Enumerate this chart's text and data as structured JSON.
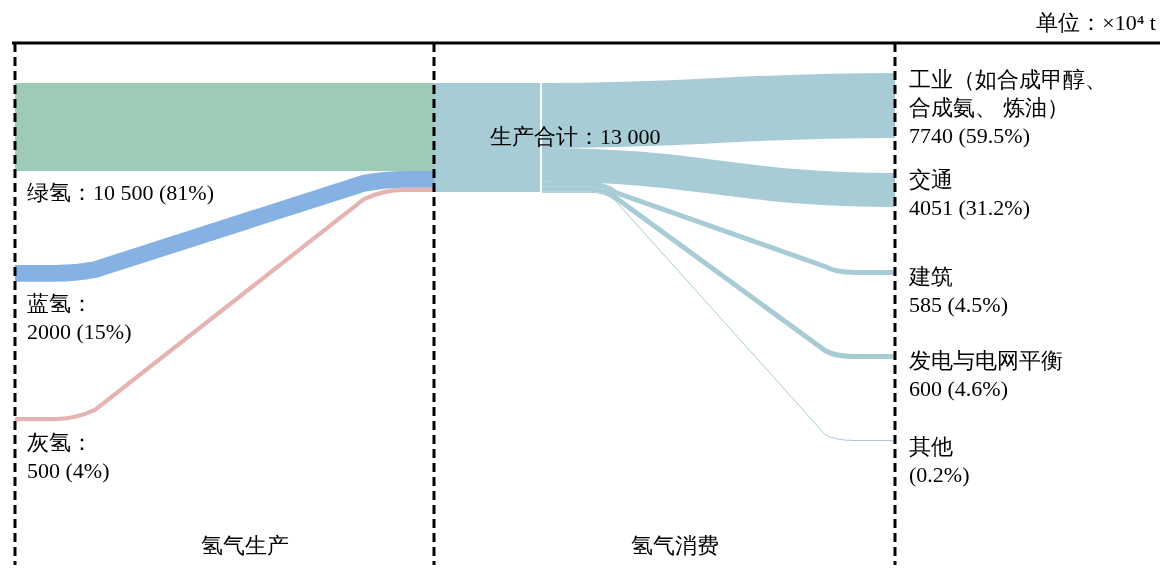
{
  "chart_data": {
    "type": "other",
    "categories": [
      "绿氢",
      "蓝氢",
      "灰氢",
      "生产合计",
      "工业（如合成甲醇、合成氨、 炼油）",
      "交通",
      "建筑",
      "发电与电网平衡",
      "其他"
    ],
    "values": [
      10500,
      2000,
      500,
      13000,
      7740,
      4051,
      585,
      600,
      null
    ],
    "value_labels": [
      "：10 500 (81%)",
      "：2000 (15%)",
      "：500 (4%)",
      "：13 000",
      "7740 (59.5%)",
      "4051 (31.2%)",
      "585 (4.5%)",
      "600 (4.6%)",
      "(0.2%)"
    ],
    "colors": [
      "#9ecbb7",
      "#86b2e3",
      "#e6b3b3",
      "#a8ccd5",
      "#a8ccd5",
      "#a8ccd5",
      "#a8ccd5",
      "#a8ccd5",
      "#a8ccd5"
    ],
    "annotations": [
      "单位：×10⁴ t",
      "氢气生产",
      "氢气消费"
    ]
  }
}
